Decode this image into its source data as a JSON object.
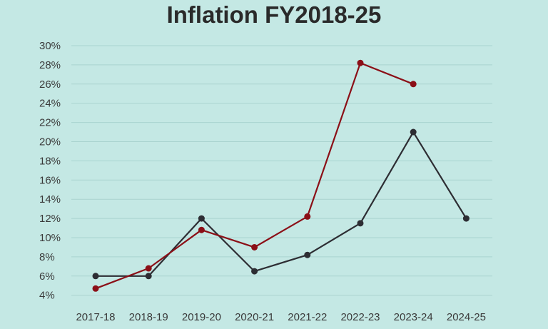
{
  "chart_data": {
    "type": "line",
    "title": "Inflation FY2018-25",
    "xlabel": "",
    "ylabel": "",
    "categories": [
      "2017-18",
      "2018-19",
      "2019-20",
      "2020-21",
      "2021-22",
      "2022-23",
      "2023-24",
      "2024-25"
    ],
    "y_ticks": [
      "30%",
      "28%",
      "26%",
      "24%",
      "22%",
      "20%",
      "18%",
      "16%",
      "14%",
      "12%",
      "10%",
      "8%",
      "6%",
      "4%"
    ],
    "ylim": [
      3,
      30
    ],
    "grid": true,
    "legend": "none",
    "series": [
      {
        "color": "#2d2d33",
        "values": [
          6.0,
          6.0,
          12.0,
          6.5,
          8.2,
          11.5,
          21.0,
          12.0
        ]
      },
      {
        "color": "#8b0f17",
        "values": [
          4.7,
          6.8,
          10.8,
          9.0,
          12.2,
          28.2,
          26.0,
          null
        ]
      }
    ]
  }
}
